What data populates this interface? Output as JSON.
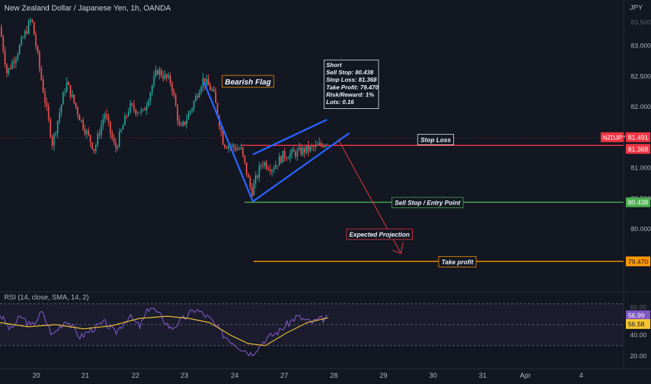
{
  "header": {
    "title": "New Zealand Dollar / Japanese Yen, 1h, OANDA"
  },
  "rsi_header": "RSI (14, close, SMA, 14, 2)",
  "currency": "JPY",
  "colors": {
    "background": "#131722",
    "bull": "#26a69a",
    "bear": "#ef5350",
    "flag": "#2962ff",
    "stop_loss": "#f23645",
    "entry": "#4caf50",
    "take_profit": "#ff9800",
    "projection": "#f23645",
    "rsi": "#7e57c2",
    "rsi_ma": "#f7c530"
  },
  "chart_data": {
    "type": "candlestick",
    "symbol": "NZDJPY",
    "x_ticks": [
      "20",
      "21",
      "22",
      "23",
      "24",
      "27",
      "28",
      "29",
      "30",
      "31",
      "Apr",
      "4"
    ],
    "y_ticks": [
      "83.000",
      "82.500",
      "82.000",
      "81.000",
      "80.500",
      "80.000"
    ],
    "y_partial_top": "83.500",
    "ylim": [
      79.2,
      83.5
    ],
    "price_path": [
      [
        0,
        83.3
      ],
      [
        10,
        82.55
      ],
      [
        25,
        82.9
      ],
      [
        45,
        83.45
      ],
      [
        60,
        82.4
      ],
      [
        75,
        81.4
      ],
      [
        95,
        82.4
      ],
      [
        115,
        81.8
      ],
      [
        135,
        81.3
      ],
      [
        150,
        81.9
      ],
      [
        165,
        81.3
      ],
      [
        185,
        82.0
      ],
      [
        205,
        81.9
      ],
      [
        225,
        82.6
      ],
      [
        245,
        82.4
      ],
      [
        258,
        81.6
      ],
      [
        275,
        82.0
      ],
      [
        290,
        82.45
      ],
      [
        305,
        82.25
      ],
      [
        320,
        81.4
      ],
      [
        345,
        81.3
      ],
      [
        360,
        80.6
      ],
      [
        375,
        81.1
      ],
      [
        390,
        81.0
      ],
      [
        405,
        81.2
      ],
      [
        425,
        81.25
      ],
      [
        440,
        81.3
      ],
      [
        455,
        81.35
      ],
      [
        470,
        81.45
      ]
    ],
    "annotations": {
      "pattern_label": "Bearish Flag",
      "trade_box": [
        "Short",
        "Sell Stop: 80.438",
        "Stop Loss: 81.368",
        "Take Profit: 79.470",
        "Risk/Reward: 1%",
        "Lots: 0.16"
      ],
      "stop_loss_label": "Stop Loss",
      "entry_label": "Sell Stop / Entry Point",
      "projection_label": "Expected Projection",
      "take_profit_label": "Take profit"
    },
    "levels": {
      "current": 81.491,
      "stop_loss": 81.368,
      "entry": 80.438,
      "take_profit": 79.47
    },
    "price_tags": {
      "symbol_tag": "NZDJPY",
      "current": "81.491",
      "stop_loss": "81.368",
      "entry": "80.438",
      "take_profit": "79.470"
    },
    "rsi": {
      "ylim": [
        15,
        75
      ],
      "y_ticks": [
        "40.00",
        "20.00"
      ],
      "y_partial_top": "60.00",
      "upper_band": 70,
      "mid_band": 50,
      "lower_band": 30,
      "value_label": "56.99",
      "ma_label": "56.58",
      "rsi_path": [
        [
          0,
          60
        ],
        [
          15,
          45
        ],
        [
          30,
          58
        ],
        [
          45,
          48
        ],
        [
          60,
          62
        ],
        [
          75,
          40
        ],
        [
          95,
          55
        ],
        [
          115,
          38
        ],
        [
          130,
          45
        ],
        [
          150,
          52
        ],
        [
          165,
          42
        ],
        [
          185,
          58
        ],
        [
          200,
          48
        ],
        [
          215,
          68
        ],
        [
          230,
          58
        ],
        [
          245,
          46
        ],
        [
          260,
          54
        ],
        [
          280,
          65
        ],
        [
          300,
          56
        ],
        [
          320,
          40
        ],
        [
          340,
          30
        ],
        [
          360,
          22
        ],
        [
          380,
          36
        ],
        [
          400,
          44
        ],
        [
          425,
          58
        ],
        [
          445,
          52
        ],
        [
          470,
          57
        ]
      ],
      "ma_path": [
        [
          0,
          52
        ],
        [
          40,
          48
        ],
        [
          80,
          50
        ],
        [
          120,
          46
        ],
        [
          160,
          49
        ],
        [
          200,
          56
        ],
        [
          240,
          58
        ],
        [
          270,
          56
        ],
        [
          300,
          52
        ],
        [
          330,
          40
        ],
        [
          355,
          32
        ],
        [
          380,
          30
        ],
        [
          410,
          42
        ],
        [
          440,
          52
        ],
        [
          470,
          56.6
        ]
      ]
    }
  }
}
